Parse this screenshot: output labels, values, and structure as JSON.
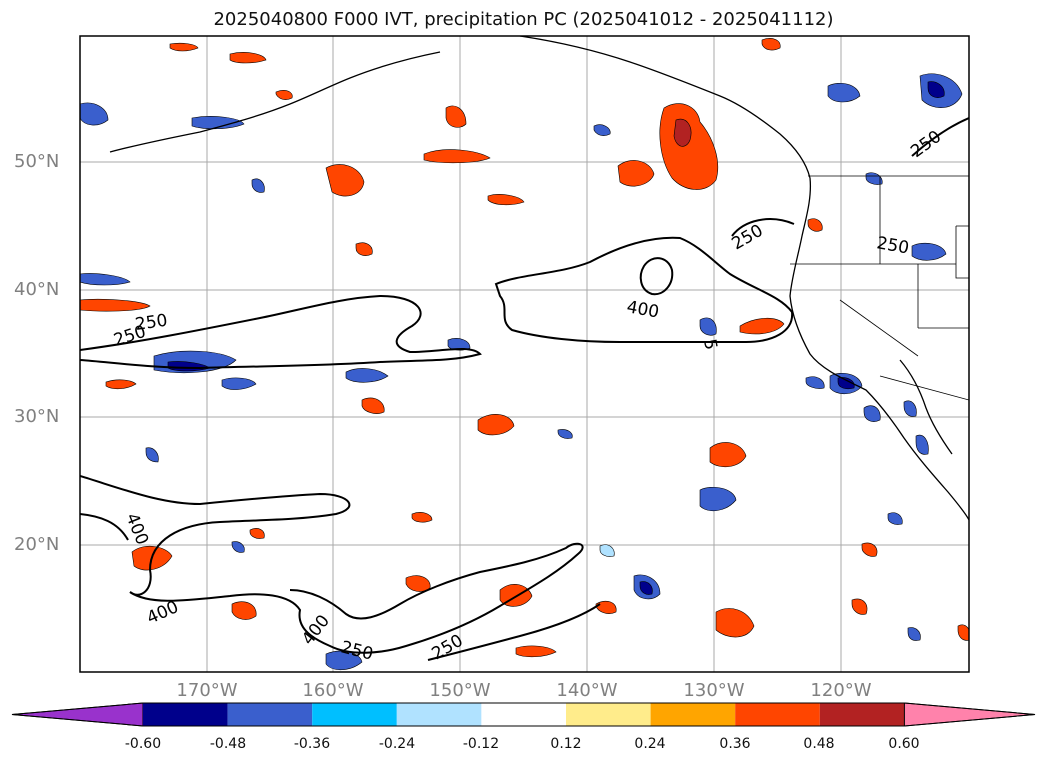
{
  "title": "2025040800 F000 IVT, precipitation PC (2025041012 - 2025041112)",
  "lat_labels": [
    "50°N",
    "40°N",
    "30°N",
    "20°N"
  ],
  "lon_labels": [
    "170°W",
    "160°W",
    "150°W",
    "140°W",
    "130°W",
    "120°W"
  ],
  "colorbar": {
    "colors": [
      "#9932cc",
      "#00008b",
      "#3a5fcd",
      "#00bfff",
      "#b0e2ff",
      "#ffffff",
      "#ffec8b",
      "#ffa500",
      "#ff4500",
      "#b22222",
      "#ff82ab"
    ],
    "ticks": [
      "-0.60",
      "-0.48",
      "-0.36",
      "-0.24",
      "-0.12",
      "0.12",
      "0.24",
      "0.36",
      "0.48",
      "0.60"
    ]
  },
  "ivt_contour_labels": [
    "250",
    "250",
    "250",
    "250",
    "250",
    "400",
    "5",
    "400",
    "400",
    "400",
    "250",
    "250",
    "250"
  ]
}
